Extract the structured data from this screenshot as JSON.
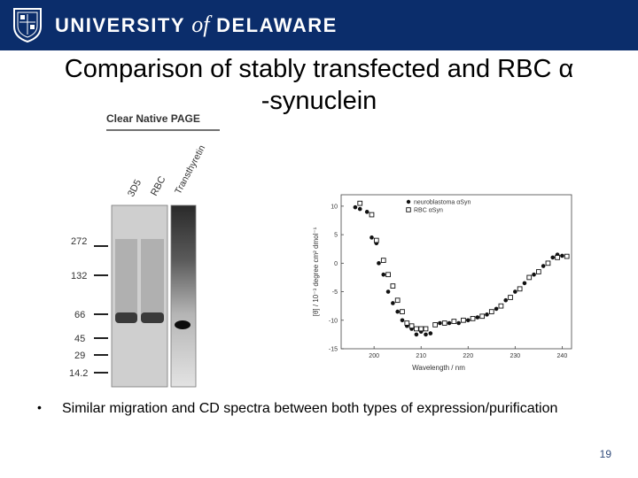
{
  "header": {
    "brand_left": "UNIVERSITY",
    "brand_of": "of",
    "brand_right": "DELAWARE",
    "seal_icon": "university-seal-icon",
    "bar_color": "#0b2d6b"
  },
  "title": {
    "line1": "Comparison of stably transfected and RBC α",
    "line2": "-synuclein"
  },
  "gel": {
    "heading": "Clear Native PAGE",
    "lanes": [
      "3D5",
      "RBC",
      "Transthyretin"
    ],
    "markers": [
      "272",
      "132",
      "66",
      "45",
      "29",
      "14.2"
    ]
  },
  "chart_data": {
    "type": "scatter",
    "xlabel": "Wavelength / nm",
    "ylabel": "[θ] / 10⁻³ degree cm² dmol⁻¹",
    "xlim": [
      193,
      242
    ],
    "ylim": [
      -15,
      12
    ],
    "xticks": [
      200,
      210,
      220,
      230,
      240
    ],
    "yticks": [
      10,
      5,
      0,
      -5,
      -10,
      -15
    ],
    "legend_position": "top-right",
    "series": [
      {
        "name": "neuroblastoma αSyn",
        "marker": "filled-circle",
        "points": [
          [
            196,
            9.8
          ],
          [
            197,
            9.5
          ],
          [
            198.5,
            9
          ],
          [
            199.5,
            4.5
          ],
          [
            200.5,
            3.5
          ],
          [
            201,
            0
          ],
          [
            202,
            -2
          ],
          [
            203,
            -5
          ],
          [
            204,
            -7
          ],
          [
            205,
            -8.5
          ],
          [
            206,
            -10
          ],
          [
            207,
            -11
          ],
          [
            208,
            -11.5
          ],
          [
            209,
            -12.5
          ],
          [
            210,
            -12
          ],
          [
            211,
            -12.5
          ],
          [
            212,
            -12.3
          ],
          [
            214,
            -10.5
          ],
          [
            216,
            -10.5
          ],
          [
            218,
            -10.5
          ],
          [
            220,
            -10
          ],
          [
            222,
            -9.5
          ],
          [
            224,
            -9
          ],
          [
            226,
            -8
          ],
          [
            228,
            -6.5
          ],
          [
            230,
            -5
          ],
          [
            232,
            -3.5
          ],
          [
            234,
            -2
          ],
          [
            236,
            -0.5
          ],
          [
            238,
            1
          ],
          [
            239,
            1.5
          ],
          [
            240,
            1.3
          ]
        ]
      },
      {
        "name": "RBC αSyn",
        "marker": "open-square",
        "points": [
          [
            197,
            10.5
          ],
          [
            199.5,
            8.5
          ],
          [
            200.5,
            4
          ],
          [
            202,
            0.5
          ],
          [
            203,
            -2
          ],
          [
            204,
            -4
          ],
          [
            205,
            -6.5
          ],
          [
            206,
            -8.5
          ],
          [
            207,
            -10.5
          ],
          [
            208,
            -11
          ],
          [
            209,
            -11.5
          ],
          [
            210,
            -11.5
          ],
          [
            211,
            -11.5
          ],
          [
            213,
            -10.8
          ],
          [
            215,
            -10.5
          ],
          [
            217,
            -10.2
          ],
          [
            219,
            -10
          ],
          [
            221,
            -9.7
          ],
          [
            223,
            -9.3
          ],
          [
            225,
            -8.5
          ],
          [
            227,
            -7.5
          ],
          [
            229,
            -6
          ],
          [
            231,
            -4.5
          ],
          [
            233,
            -2.5
          ],
          [
            235,
            -1.5
          ],
          [
            237,
            0
          ],
          [
            239,
            1
          ],
          [
            241,
            1.2
          ]
        ]
      }
    ]
  },
  "bullet": {
    "symbol": "•",
    "text": "Similar migration and CD spectra between both types of expression/purification"
  },
  "footer": {
    "page_number": "19"
  }
}
